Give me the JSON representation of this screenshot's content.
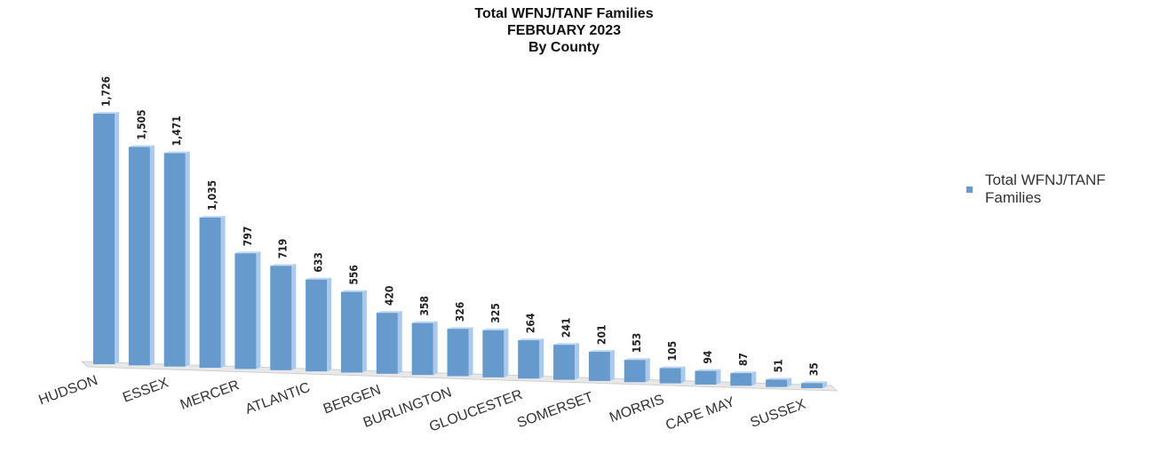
{
  "chart_data": {
    "type": "bar",
    "title": "Total WFNJ/TANF Families\nFEBRUARY 2023\nBy County",
    "categories": [
      "HUDSON",
      null,
      "ESSEX",
      null,
      "MERCER",
      null,
      "ATLANTIC",
      null,
      "BERGEN",
      null,
      "BURLINGTON",
      null,
      "GLOUCESTER",
      null,
      "SOMERSET",
      null,
      "MORRIS",
      null,
      "CAPE MAY",
      null,
      "SUSSEX"
    ],
    "series": [
      {
        "name": "Total WFNJ/TANF Families",
        "color": "#6699cc",
        "values": [
          1726,
          1505,
          1471,
          1035,
          797,
          719,
          633,
          556,
          420,
          358,
          326,
          325,
          264,
          241,
          201,
          153,
          105,
          94,
          87,
          51,
          35
        ],
        "value_labels": [
          "1,726",
          "1,505",
          "1,471",
          "1,035",
          "797",
          "719",
          "633",
          "556",
          "420",
          "358",
          "326",
          "325",
          "264",
          "241",
          "201",
          "153",
          "105",
          "94",
          "87",
          "51",
          "35"
        ]
      }
    ],
    "legend": "right"
  }
}
